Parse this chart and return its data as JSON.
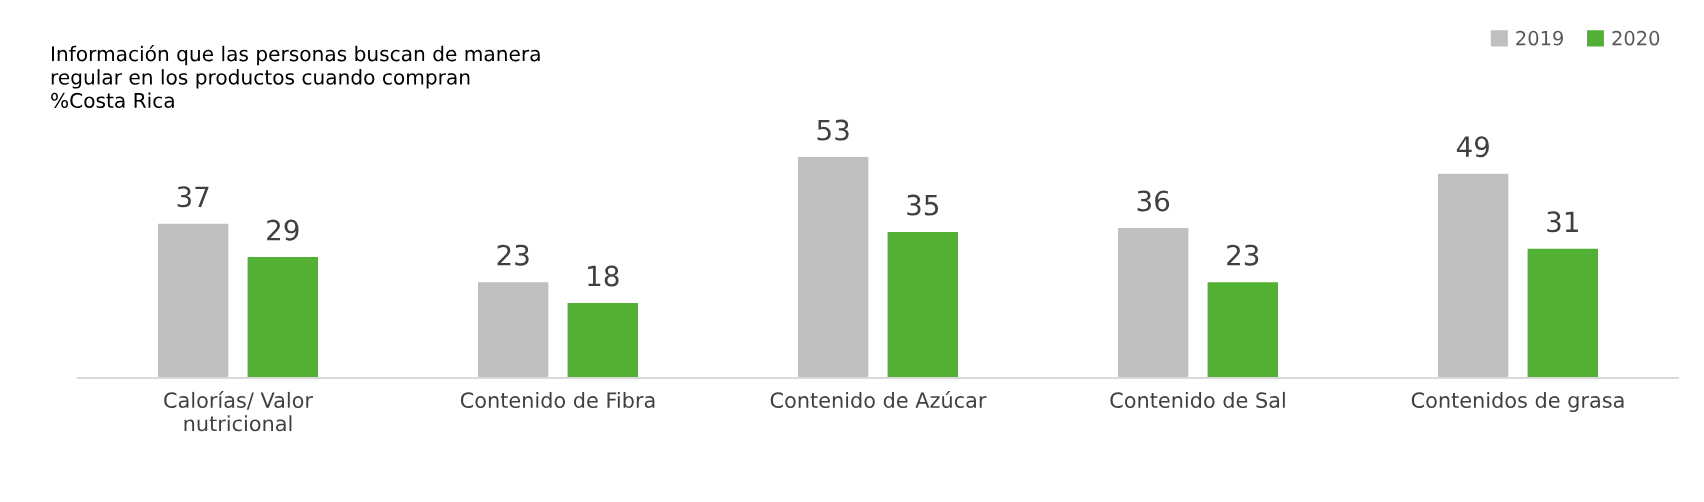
{
  "chart_data": {
    "type": "bar",
    "title": "Información que las personas buscan de manera\nregular en los productos cuando compran\n%Costa Rica",
    "categories": [
      "Calorías/ Valor\nnutricional",
      "Contenido de Fibra",
      "Contenido de Azúcar",
      "Contenido de Sal",
      "Contenidos de grasa"
    ],
    "series": [
      {
        "name": "2019",
        "color": "#bfbfbf",
        "values": [
          37,
          23,
          53,
          36,
          49
        ]
      },
      {
        "name": "2020",
        "color": "#52b035",
        "values": [
          29,
          18,
          35,
          23,
          31
        ]
      }
    ],
    "data_labels": true,
    "legend": "top right",
    "grid": false
  }
}
